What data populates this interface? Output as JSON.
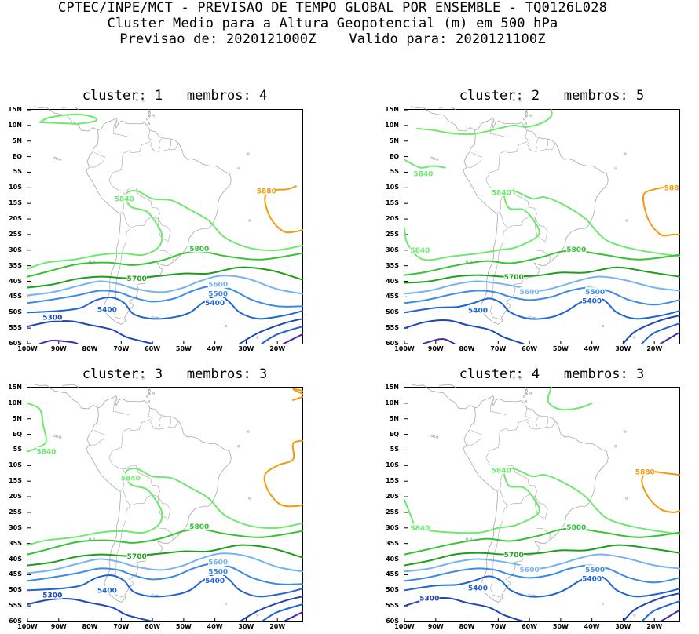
{
  "header": {
    "line1": "CPTEC/INPE/MCT - PREVISAO DE TEMPO GLOBAL POR ENSEMBLE - TQ0126L028",
    "line2": "Cluster Medio para a Altura Geopotencial (m) em 500 hPa",
    "line3": "Previsao de: 2020121000Z    Valido para: 2020121100Z"
  },
  "axes": {
    "lat_ticks": [
      "15N",
      "10N",
      "5N",
      "EQ",
      "5S",
      "10S",
      "15S",
      "20S",
      "25S",
      "30S",
      "35S",
      "40S",
      "45S",
      "50S",
      "55S",
      "60S"
    ],
    "lon_ticks": [
      "100W",
      "90W",
      "80W",
      "70W",
      "60W",
      "50W",
      "40W",
      "30W",
      "20W"
    ]
  },
  "colors": {
    "c5840": "#6ee86e",
    "c5800": "#37c237",
    "c5700": "#1e9e1e",
    "c5600": "#78b4f0",
    "c5500": "#3c8ce6",
    "c5400": "#1e64d2",
    "c5300": "#1e46b4",
    "c5200": "#4a2aa8",
    "c5880": "#f29a12",
    "coast": "#a8a8a8"
  },
  "panels": [
    {
      "title": "cluster: 1   membros: 4",
      "labels": {
        "l5840a": "5840",
        "l5880": "5880",
        "l5800": "5800",
        "l5700": "5700",
        "l5600": "5600",
        "l5500": "5500",
        "l5400a": "5400",
        "l5400b": "5400",
        "l5300": "5300"
      }
    },
    {
      "title": "cluster: 2   membros: 5",
      "labels": {
        "l5840a": "5840",
        "l5840b": "5840",
        "l5840c": "5840",
        "l5880": "588",
        "l5800": "5800",
        "l5700": "5700",
        "l5600": "5600",
        "l5500": "5500",
        "l5400a": "5400",
        "l5400b": "5400"
      }
    },
    {
      "title": "cluster: 3   membros: 3",
      "labels": {
        "l5840a": "5840",
        "l5840b": "5840",
        "l5800": "5800",
        "l5700": "5700",
        "l5600": "5600",
        "l5500": "5500",
        "l5400a": "5400",
        "l5400b": "5400",
        "l5300": "5300"
      }
    },
    {
      "title": "cluster: 4   membros: 3",
      "labels": {
        "l5840a": "5840",
        "l5840b": "5840",
        "l5880": "5880",
        "l5800": "5800",
        "l5700": "5700",
        "l5600": "5600",
        "l5500": "5500",
        "l5400a": "5400",
        "l5400b": "5400",
        "l5300": "5300"
      }
    }
  ]
}
